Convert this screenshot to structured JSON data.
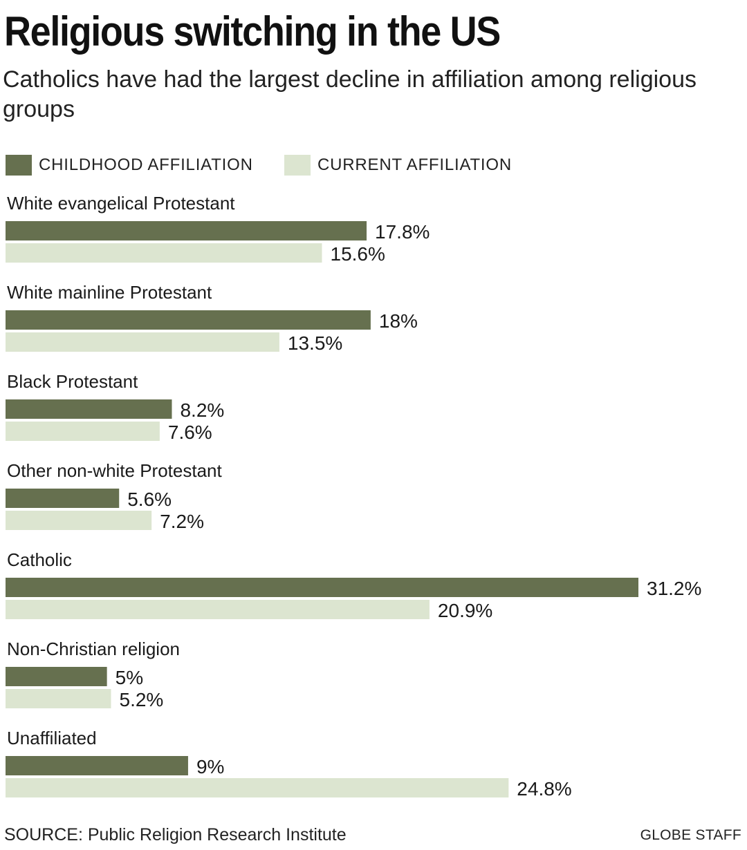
{
  "chart_data": {
    "type": "bar",
    "orientation": "horizontal",
    "title": "Religious switching in the US",
    "subtitle": "Catholics have had the largest decline in affiliation among religious groups",
    "categories": [
      "White evangelical Protestant",
      "White mainline Protestant",
      "Black Protestant",
      "Other non-white Protestant",
      "Catholic",
      "Non-Christian religion",
      "Unaffiliated"
    ],
    "series": [
      {
        "name": "CHILDHOOD AFFILIATION",
        "color": "#66704f",
        "values": [
          17.8,
          18,
          8.2,
          5.6,
          31.2,
          5,
          9
        ],
        "labels": [
          "17.8%",
          "18%",
          "8.2%",
          "5.6%",
          "31.2%",
          "5%",
          "9%"
        ]
      },
      {
        "name": "CURRENT AFFILIATION",
        "color": "#dce5d0",
        "values": [
          15.6,
          13.5,
          7.6,
          7.2,
          20.9,
          5.2,
          24.8
        ],
        "labels": [
          "15.6%",
          "13.5%",
          "7.6%",
          "7.2%",
          "20.9%",
          "5.2%",
          "24.8%"
        ]
      }
    ],
    "unit": "%",
    "xlim": [
      0,
      31.2
    ],
    "grid": false,
    "legend": "top-left"
  },
  "source": "SOURCE: Public Religion Research Institute",
  "credit": "GLOBE STAFF"
}
